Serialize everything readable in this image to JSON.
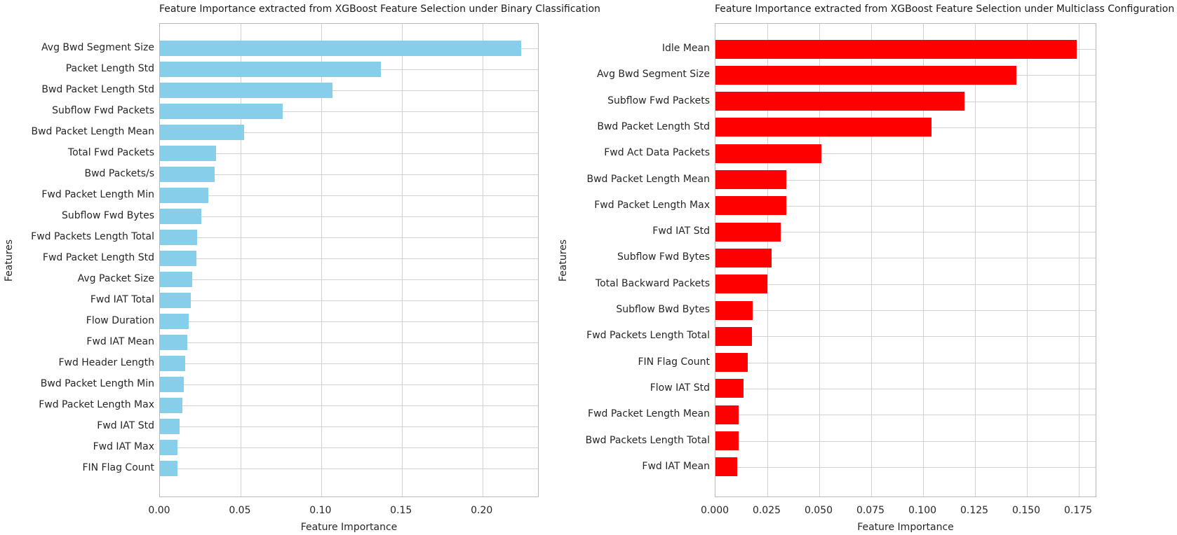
{
  "figure": {
    "background_color": "#ffffff",
    "grid_color": "#d2d2d2",
    "frame_color": "#b9b9b9",
    "text_color": "#262626"
  },
  "chart_data": [
    {
      "type": "bar",
      "orientation": "horizontal",
      "title": "Feature Importance extracted from XGBoost Feature Selection under Binary Classification",
      "xlabel": "Feature Importance",
      "ylabel": "Features",
      "bar_color": "#87CEEB",
      "bar_color_name": "skyblue",
      "grid": true,
      "legend": false,
      "xlim": [
        0,
        0.2345
      ],
      "xticks": [
        0,
        0.05,
        0.1,
        0.15,
        0.2
      ],
      "xtick_labels": [
        "0.00",
        "0.05",
        "0.10",
        "0.15",
        "0.20"
      ],
      "categories": [
        "Avg Bwd Segment Size",
        "Packet Length Std",
        "Bwd Packet Length Std",
        "Subflow Fwd Packets",
        "Bwd Packet Length Mean",
        "Total Fwd Packets",
        "Bwd Packets/s",
        "Fwd Packet Length Min",
        "Subflow Fwd Bytes",
        "Fwd Packets Length Total",
        "Fwd Packet Length Std",
        "Avg Packet Size",
        "Fwd IAT Total",
        "Flow Duration",
        "Fwd IAT Mean",
        "Fwd Header Length",
        "Bwd Packet Length Min",
        "Fwd Packet Length Max",
        "Fwd IAT Std",
        "Fwd IAT Max",
        "FIN Flag Count"
      ],
      "values": [
        0.224,
        0.137,
        0.107,
        0.076,
        0.052,
        0.035,
        0.034,
        0.03,
        0.0255,
        0.0232,
        0.0225,
        0.02,
        0.019,
        0.018,
        0.017,
        0.0155,
        0.0148,
        0.014,
        0.012,
        0.011,
        0.011
      ]
    },
    {
      "type": "bar",
      "orientation": "horizontal",
      "title": "Feature Importance extracted from XGBoost Feature Selection under Multiclass Configuration",
      "xlabel": "Feature Importance",
      "ylabel": "Features",
      "bar_color": "#FF0000",
      "bar_color_name": "red",
      "grid": true,
      "legend": false,
      "xlim": [
        0,
        0.1831
      ],
      "xticks": [
        0,
        0.025,
        0.05,
        0.075,
        0.1,
        0.125,
        0.15,
        0.175
      ],
      "xtick_labels": [
        "0.000",
        "0.025",
        "0.050",
        "0.075",
        "0.100",
        "0.125",
        "0.150",
        "0.175"
      ],
      "categories": [
        "Idle Mean",
        "Avg Bwd Segment Size",
        "Subflow Fwd Packets",
        "Bwd Packet Length Std",
        "Fwd Act Data Packets",
        "Bwd Packet Length Mean",
        "Fwd Packet Length Max",
        "Fwd IAT Std",
        "Subflow Fwd Bytes",
        "Total Backward Packets",
        "Subflow Bwd Bytes",
        "Fwd Packets Length Total",
        "FIN Flag Count",
        "Flow IAT Std",
        "Fwd Packet Length Mean",
        "Bwd Packets Length Total",
        "Fwd IAT Mean"
      ],
      "values": [
        0.174,
        0.145,
        0.12,
        0.104,
        0.051,
        0.034,
        0.034,
        0.0315,
        0.027,
        0.025,
        0.018,
        0.0175,
        0.0155,
        0.0135,
        0.011,
        0.011,
        0.0105
      ]
    }
  ]
}
